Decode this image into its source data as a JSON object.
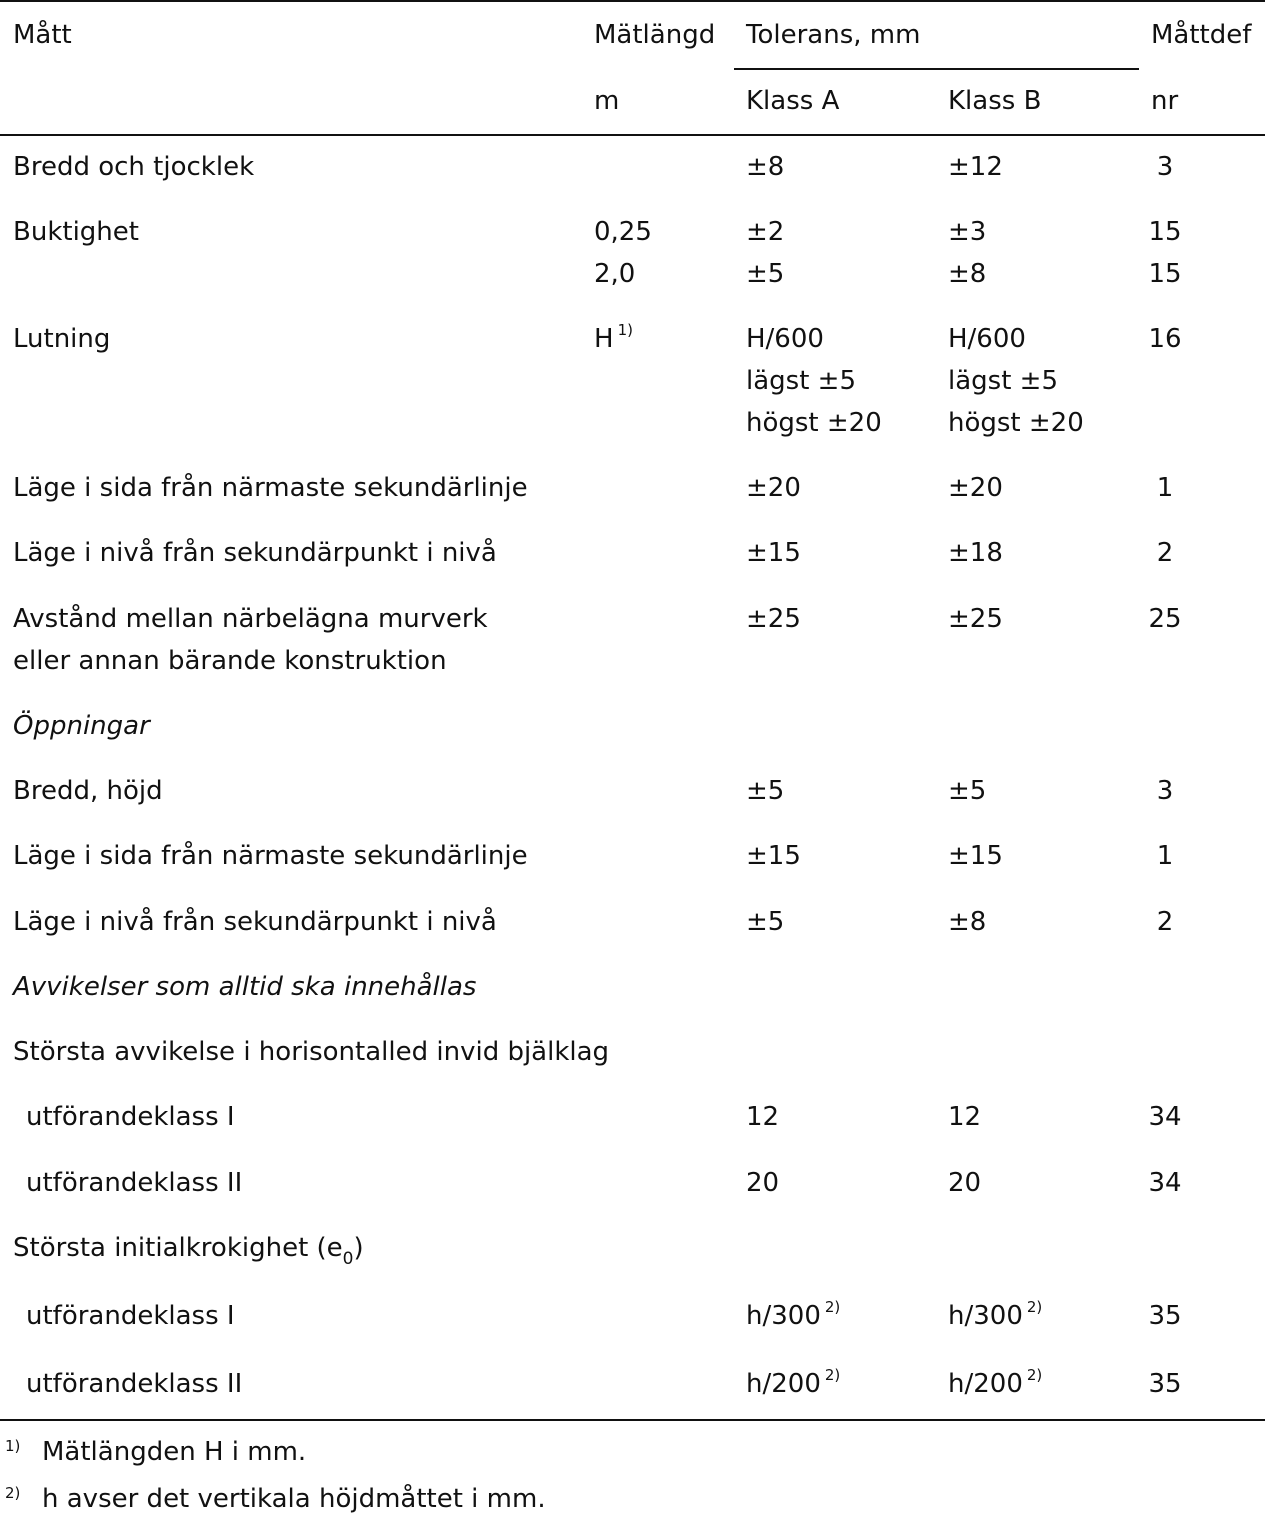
{
  "header": {
    "col_matt": "Mått",
    "col_matlangd": "Mätlängd",
    "col_tolerans": "Tolerans, mm",
    "col_mattdef": "Måttdef",
    "unit_matlangd": "m",
    "col_klass_a": "Klass A",
    "col_klass_b": "Klass B",
    "unit_mattdef": "nr"
  },
  "rows": [
    {
      "matt": "Bredd och tjocklek",
      "a": "±8",
      "b": "±12",
      "nr": "3"
    },
    {
      "matt": "Buktighet",
      "len1": "0,25",
      "a1": "±2",
      "b1": "±3",
      "nr1": "15",
      "len2": "2,0",
      "a2": "±5",
      "b2": "±8",
      "nr2": "15"
    },
    {
      "matt": "Lutning",
      "len": "H",
      "len_note": "1)",
      "a1": "H/600",
      "a2": "lägst ±5",
      "a3": "högst ±20",
      "b1": "H/600",
      "b2": "lägst ±5",
      "b3": "högst ±20",
      "nr": "16"
    },
    {
      "matt": "Läge i sida från närmaste sekundärlinje",
      "a": "±20",
      "b": "±20",
      "nr": "1"
    },
    {
      "matt": "Läge i nivå från sekundärpunkt i nivå",
      "a": "±15",
      "b": "±18",
      "nr": "2"
    },
    {
      "matt1": "Avstånd mellan närbelägna murverk",
      "matt2": "eller annan bärande konstruktion",
      "a": "±25",
      "b": "±25",
      "nr": "25"
    },
    {
      "section": "Öppningar"
    },
    {
      "matt": "Bredd, höjd",
      "a": "±5",
      "b": "±5",
      "nr": "3"
    },
    {
      "matt": "Läge i sida från närmaste sekundärlinje",
      "a": "±15",
      "b": "±15",
      "nr": "1"
    },
    {
      "matt": "Läge i nivå från sekundärpunkt i nivå",
      "a": "±5",
      "b": "±8",
      "nr": "2"
    },
    {
      "section": "Avvikelser som alltid ska innehållas"
    },
    {
      "matt": "Största avvikelse i horisontalled invid bjälklag"
    },
    {
      "matt": "utförandeklass I",
      "a": "12",
      "b": "12",
      "nr": "34"
    },
    {
      "matt": "utförandeklass II",
      "a": "20",
      "b": "20",
      "nr": "34"
    },
    {
      "matt": "Största initialkrokighet (e",
      "matt_sub": "0",
      "matt_end": ")"
    },
    {
      "matt": "utförandeklass I",
      "a": "h/300",
      "b": "h/300",
      "note": "2)",
      "nr": "35"
    },
    {
      "matt": "utförandeklass II",
      "a": "h/200",
      "b": "h/200",
      "note": "2)",
      "nr": "35"
    }
  ],
  "footnotes": [
    {
      "mark": "1)",
      "text": "Mätlängden H i mm."
    },
    {
      "mark": "2)",
      "text": "h avser det vertikala höjdmåttet i mm."
    }
  ]
}
